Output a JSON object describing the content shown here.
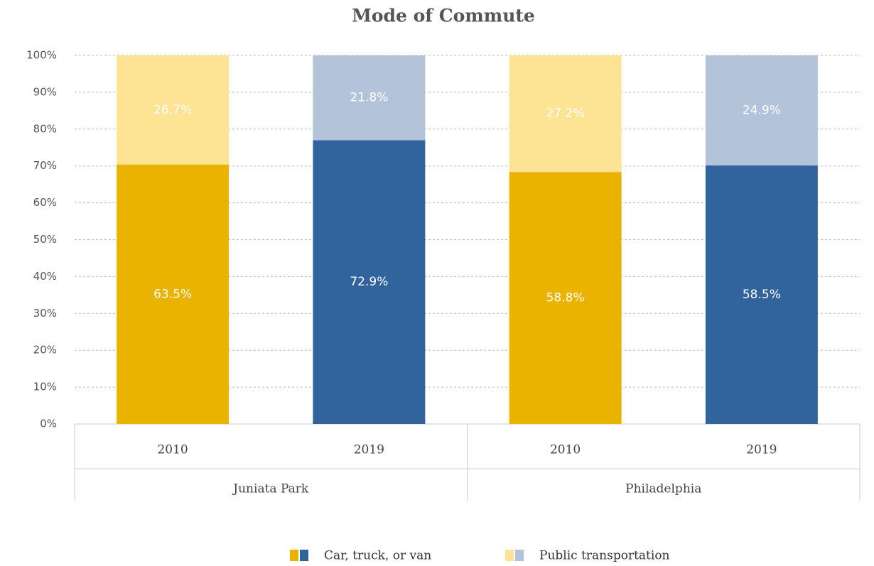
{
  "chart_data": {
    "type": "stacked_bar",
    "stacking": "percent",
    "title": "Mode of Commute",
    "categories": [
      "2010",
      "2019",
      "2010",
      "2019"
    ],
    "groups": [
      "Juniata Park",
      "Philadelphia"
    ],
    "series": [
      {
        "name": "Car, truck, or van",
        "colors": [
          "#eab300",
          "#31649c",
          "#eab300",
          "#31649c"
        ],
        "values": [
          63.5,
          72.9,
          58.8,
          58.5
        ],
        "value_labels": [
          "63.5%",
          "72.9%",
          "58.8%",
          "58.5%"
        ]
      },
      {
        "name": "Public transportation",
        "colors": [
          "#fde394",
          "#b2c3da",
          "#fde394",
          "#b2c3da"
        ],
        "values": [
          26.7,
          21.8,
          27.2,
          24.9
        ],
        "value_labels": [
          "26.7%",
          "21.8%",
          "27.2%",
          "24.9%"
        ]
      }
    ],
    "ylim": [
      0,
      100
    ],
    "yticks": [
      {
        "value": 0,
        "label": "0%"
      },
      {
        "value": 10,
        "label": "10%"
      },
      {
        "value": 20,
        "label": "20%"
      },
      {
        "value": 30,
        "label": "30%"
      },
      {
        "value": 40,
        "label": "40%"
      },
      {
        "value": 50,
        "label": "50%"
      },
      {
        "value": 60,
        "label": "60%"
      },
      {
        "value": 70,
        "label": "70%"
      },
      {
        "value": 80,
        "label": "80%"
      },
      {
        "value": 90,
        "label": "90%"
      },
      {
        "value": 100,
        "label": "100%"
      }
    ],
    "grid": true
  }
}
